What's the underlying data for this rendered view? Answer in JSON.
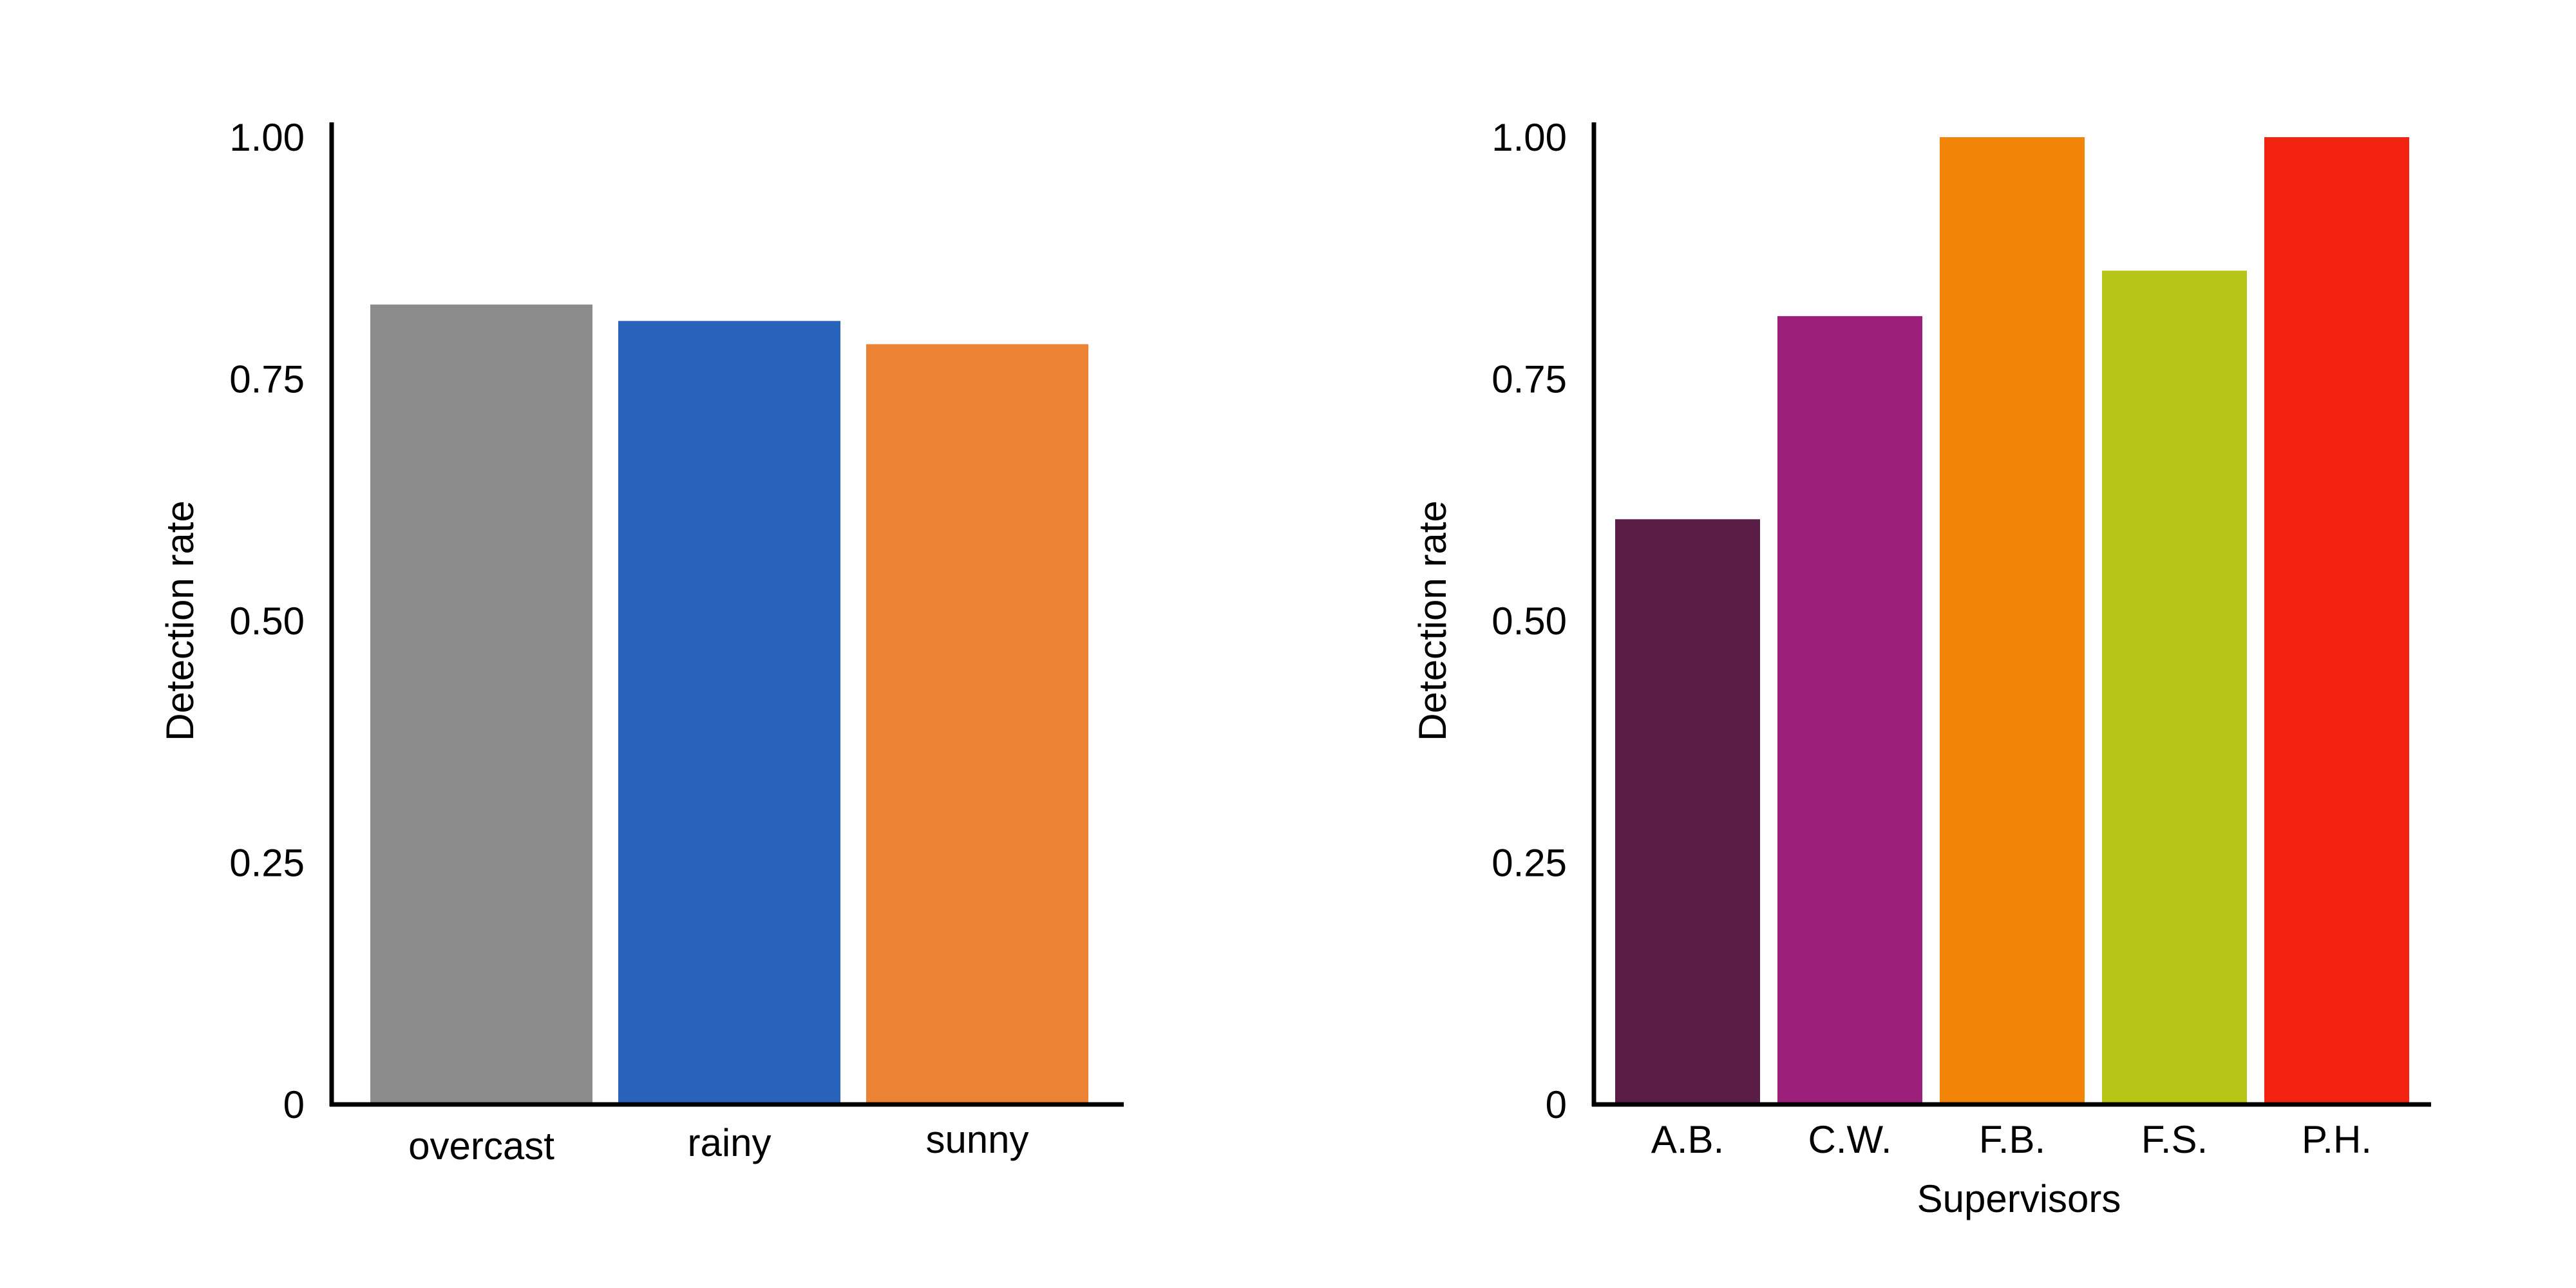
{
  "chart_data": [
    {
      "type": "bar",
      "title": "",
      "xlabel": "",
      "ylabel": "Detection rate",
      "ylim": [
        0,
        1
      ],
      "yticks": [
        0,
        0.25,
        0.5,
        0.75,
        1.0
      ],
      "ytick_labels": [
        "0",
        "0.25",
        "0.50",
        "0.75",
        "1.00"
      ],
      "grid": false,
      "categories": [
        "overcast",
        "rainy",
        "sunny"
      ],
      "values": [
        0.827,
        0.81,
        0.786
      ],
      "colors": [
        "#8c8c8c",
        "#2962ba",
        "#ec8234"
      ]
    },
    {
      "type": "bar",
      "title": "",
      "xlabel": "Supervisors",
      "ylabel": "Detection rate",
      "ylim": [
        0,
        1
      ],
      "yticks": [
        0,
        0.25,
        0.5,
        0.75,
        1.0
      ],
      "ytick_labels": [
        "0",
        "0.25",
        "0.50",
        "0.75",
        "1.00"
      ],
      "grid": false,
      "categories": [
        "A.B.",
        "C.W.",
        "F.B.",
        "F.S.",
        "P.H."
      ],
      "values": [
        0.605,
        0.815,
        1.0,
        0.862,
        1.0
      ],
      "colors": [
        "#5a1d45",
        "#9c207b",
        "#f28507",
        "#b5c617",
        "#f22311"
      ]
    }
  ]
}
